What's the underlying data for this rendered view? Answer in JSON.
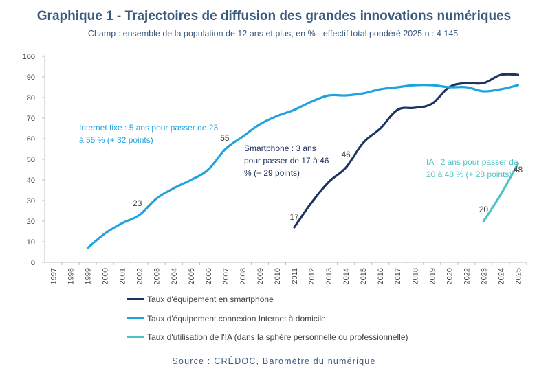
{
  "title": "Graphique 1 - Trajectoires de diffusion des grandes innovations numériques",
  "subtitle": "- Champ : ensemble de la population de 12 ans et plus, en % - effectif total pondéré 2025 n : 4 145 –",
  "source": "Source : CRÉDOC, Baromètre du numérique",
  "annotations": {
    "internet": "Internet fixe : 5 ans pour passer de 23 à 55 % (+ 32 points)",
    "smartphone": "Smartphone : 3 ans pour passer de 17 à 46 % (+ 29 points)",
    "ia": "IA : 2 ans pour passer de 20 à 48 % (+ 28 points)"
  },
  "legend": [
    {
      "label": "Taux d'équipement en smartphone",
      "color": "#1e3461"
    },
    {
      "label": "Taux d'équipement connexion Internet à domicile",
      "color": "#1fa3e0"
    },
    {
      "label": "Taux d'utilisation de l'IA (dans la sphère personnelle ou professionnelle)",
      "color": "#4ec3c4"
    }
  ],
  "chart_data": {
    "type": "line",
    "title": "Graphique 1 - Trajectoires de diffusion des grandes innovations numériques",
    "xlabel": "",
    "ylabel": "",
    "ylim": [
      0,
      100
    ],
    "yticks": [
      "0",
      "10",
      "20",
      "30",
      "40",
      "50",
      "60",
      "70",
      "80",
      "90",
      "100"
    ],
    "categories": [
      "1997",
      "1998",
      "1999",
      "2000",
      "2001",
      "2002",
      "2003",
      "2004",
      "2005",
      "2006",
      "2007",
      "2008",
      "2009",
      "2010",
      "2011",
      "2012",
      "2013",
      "2014",
      "2015",
      "2016",
      "2017",
      "2018",
      "2019",
      "2020",
      "2022",
      "2023",
      "2024",
      "2025"
    ],
    "series": [
      {
        "name": "Taux d'équipement en smartphone",
        "color": "#1e3461",
        "values": [
          null,
          null,
          null,
          null,
          null,
          null,
          null,
          null,
          null,
          null,
          null,
          null,
          null,
          null,
          17,
          29,
          39,
          46,
          58,
          65,
          74,
          75,
          77,
          85,
          87,
          87,
          91,
          91
        ]
      },
      {
        "name": "Taux d'équipement connexion Internet à domicile",
        "color": "#1fa3e0",
        "values": [
          null,
          null,
          7,
          14,
          19,
          23,
          31,
          36,
          40,
          45,
          55,
          61,
          67,
          71,
          74,
          78,
          81,
          81,
          82,
          84,
          85,
          86,
          86,
          85,
          85,
          83,
          84,
          86
        ]
      },
      {
        "name": "Taux d'utilisation de l'IA (dans la sphère personnelle ou professionnelle)",
        "color": "#4ec3c4",
        "values": [
          null,
          null,
          null,
          null,
          null,
          null,
          null,
          null,
          null,
          null,
          null,
          null,
          null,
          null,
          null,
          null,
          null,
          null,
          null,
          null,
          null,
          null,
          null,
          null,
          null,
          20,
          33,
          48
        ]
      }
    ],
    "data_labels": [
      {
        "series": 1,
        "category": "2002",
        "text": "23"
      },
      {
        "series": 1,
        "category": "2007",
        "text": "55"
      },
      {
        "series": 0,
        "category": "2011",
        "text": "17"
      },
      {
        "series": 0,
        "category": "2014",
        "text": "46"
      },
      {
        "series": 2,
        "category": "2023",
        "text": "20"
      },
      {
        "series": 2,
        "category": "2025",
        "text": "48"
      }
    ]
  }
}
